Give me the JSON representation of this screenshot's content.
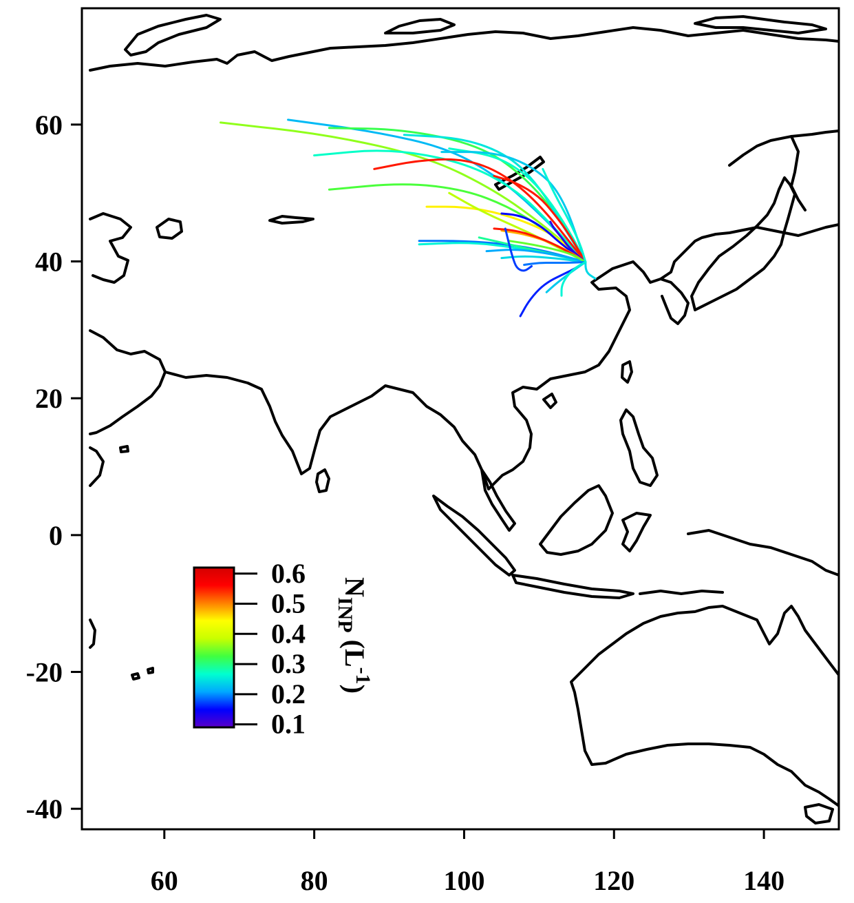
{
  "chart_data": {
    "type": "line",
    "title": "",
    "xlabel": "",
    "ylabel": "",
    "xlim": [
      49,
      150
    ],
    "ylim": [
      -43,
      77
    ],
    "x_ticks": [
      60,
      80,
      100,
      120,
      140
    ],
    "y_ticks": [
      60,
      40,
      20,
      0,
      -20,
      -40
    ],
    "x_tick_labels": [
      "60",
      "80",
      "100",
      "120",
      "140"
    ],
    "y_tick_labels": [
      "60",
      "40",
      "20",
      "0",
      "-20",
      "-40"
    ],
    "grid": false,
    "endpoint": [
      116.2,
      39.9
    ],
    "colorbar": {
      "label_main": "N",
      "label_sub": "INP",
      "label_unit": "(L",
      "label_sup": "-1",
      "label_close": ")",
      "ticks": [
        0.6,
        0.5,
        0.4,
        0.3,
        0.2,
        0.1
      ],
      "tick_labels": [
        "0.6",
        "0.5",
        "0.4",
        "0.3",
        "0.2",
        "0.1"
      ],
      "range": [
        0.09,
        0.62
      ],
      "placement": "bottom-left",
      "colors": [
        "#5a00c8",
        "#0000ff",
        "#00a8ff",
        "#00ffd0",
        "#40ff40",
        "#c8ff00",
        "#ffff00",
        "#ff8000",
        "#ff0000",
        "#d40000"
      ]
    },
    "series": [
      {
        "value": 0.36,
        "x": [
          67.5,
          82,
          95,
          104,
          111,
          116.2
        ],
        "y": [
          60.3,
          58.5,
          55.3,
          50.5,
          45,
          39.9
        ]
      },
      {
        "value": 0.22,
        "x": [
          76.5,
          88,
          98,
          105,
          111,
          116.2
        ],
        "y": [
          60.7,
          59,
          56.5,
          52,
          46,
          39.9
        ]
      },
      {
        "value": 0.27,
        "x": [
          80,
          90,
          100,
          107,
          112,
          116.2
        ],
        "y": [
          55.5,
          56.5,
          54.5,
          50.5,
          45,
          39.9
        ]
      },
      {
        "value": 0.32,
        "x": [
          82,
          92,
          102,
          108,
          113,
          116.2
        ],
        "y": [
          59.5,
          59.3,
          57,
          52.5,
          46,
          39.9
        ]
      },
      {
        "value": 0.25,
        "x": [
          92,
          100,
          106,
          110,
          113,
          116.2
        ],
        "y": [
          58.5,
          58,
          55.5,
          51,
          45.5,
          39.9
        ]
      },
      {
        "value": 0.27,
        "x": [
          98,
          104,
          108,
          111,
          114,
          116.2
        ],
        "y": [
          56.5,
          55.5,
          53,
          49.5,
          44.5,
          39.9
        ]
      },
      {
        "value": 0.23,
        "x": [
          97,
          104,
          109,
          113,
          116.2
        ],
        "y": [
          56,
          56,
          54,
          50,
          39.9
        ]
      },
      {
        "value": 0.55,
        "x": [
          88,
          94,
          100,
          105,
          110,
          116.2
        ],
        "y": [
          53.5,
          54.8,
          55,
          53,
          48.5,
          39.9
        ]
      },
      {
        "value": 0.55,
        "x": [
          104,
          107,
          110,
          112,
          114,
          116.2
        ],
        "y": [
          52.5,
          51.5,
          49.5,
          47,
          44,
          39.9
        ]
      },
      {
        "value": 0.33,
        "x": [
          82,
          92,
          100,
          106,
          111,
          116.2
        ],
        "y": [
          50.5,
          51.5,
          50.5,
          48,
          44.5,
          39.9
        ]
      },
      {
        "value": 0.45,
        "x": [
          95,
          100,
          105,
          110,
          113,
          116.2
        ],
        "y": [
          48,
          48,
          47,
          45,
          43,
          39.9
        ]
      },
      {
        "value": 0.38,
        "x": [
          98,
          102,
          106,
          110,
          116.2
        ],
        "y": [
          50,
          47.5,
          45.5,
          43.5,
          39.9
        ]
      },
      {
        "value": 0.15,
        "x": [
          105,
          107,
          109,
          111,
          113,
          116.2
        ],
        "y": [
          47,
          46.8,
          46,
          44.5,
          42.5,
          39.9
        ]
      },
      {
        "value": 0.12,
        "x": [
          111.5,
          112,
          113,
          114,
          116.2
        ],
        "y": [
          45.8,
          44.8,
          43.5,
          42,
          39.9
        ]
      },
      {
        "value": 0.48,
        "x": [
          105,
          108,
          111,
          114,
          116.2
        ],
        "y": [
          44.5,
          44,
          43,
          41.5,
          39.9
        ]
      },
      {
        "value": 0.55,
        "x": [
          104,
          107,
          110,
          113,
          116.2
        ],
        "y": [
          44.8,
          44.5,
          43.5,
          42,
          39.9
        ]
      },
      {
        "value": 0.19,
        "x": [
          94,
          100,
          106,
          111,
          116.2
        ],
        "y": [
          43,
          43,
          42.5,
          41.5,
          39.9
        ]
      },
      {
        "value": 0.26,
        "x": [
          94,
          101,
          107,
          112,
          116.2
        ],
        "y": [
          42.5,
          42.8,
          42,
          41,
          39.9
        ]
      },
      {
        "value": 0.29,
        "x": [
          102,
          106,
          110,
          113,
          116.2
        ],
        "y": [
          43.5,
          42.5,
          41.5,
          40.8,
          39.9
        ]
      },
      {
        "value": 0.24,
        "x": [
          105,
          108,
          112,
          116.2
        ],
        "y": [
          40.5,
          40.8,
          40.5,
          39.9
        ]
      },
      {
        "value": 0.21,
        "x": [
          103,
          107,
          111,
          114,
          116.2
        ],
        "y": [
          41.5,
          41.8,
          41.2,
          40.6,
          39.9
        ]
      },
      {
        "value": 0.34,
        "x": [
          106,
          109,
          112,
          114.5,
          116.2
        ],
        "y": [
          43,
          42.5,
          41.8,
          41,
          39.9
        ]
      },
      {
        "value": 0.17,
        "x": [
          105.5,
          106,
          106.5,
          107,
          108,
          109
        ],
        "y": [
          44.8,
          42.5,
          40.5,
          39,
          38.5,
          39.3
        ]
      },
      {
        "value": 0.19,
        "x": [
          108,
          110,
          112,
          114,
          116.2
        ],
        "y": [
          39.5,
          39.8,
          39.8,
          39.8,
          39.9
        ]
      },
      {
        "value": 0.16,
        "x": [
          107.5,
          108.5,
          110,
          111.5,
          113,
          114.5,
          116.2
        ],
        "y": [
          32,
          34,
          36,
          37.2,
          38,
          38.8,
          39.9
        ]
      },
      {
        "value": 0.23,
        "x": [
          111,
          112,
          113.5,
          115,
          116.2
        ],
        "y": [
          35.5,
          36.5,
          37.8,
          39,
          39.9
        ]
      },
      {
        "value": 0.26,
        "x": [
          113,
          113,
          113.8,
          115,
          116.2
        ],
        "y": [
          35,
          36.5,
          38,
          39.2,
          39.9
        ]
      },
      {
        "value": 0.24,
        "x": [
          117.5,
          116.5,
          116.2,
          116.2
        ],
        "y": [
          37.5,
          38.2,
          39,
          39.9
        ]
      },
      {
        "value": 0.26,
        "x": [
          110.5,
          112,
          114,
          115.5,
          116.2
        ],
        "y": [
          53.5,
          50,
          46,
          42.5,
          39.9
        ]
      }
    ]
  }
}
